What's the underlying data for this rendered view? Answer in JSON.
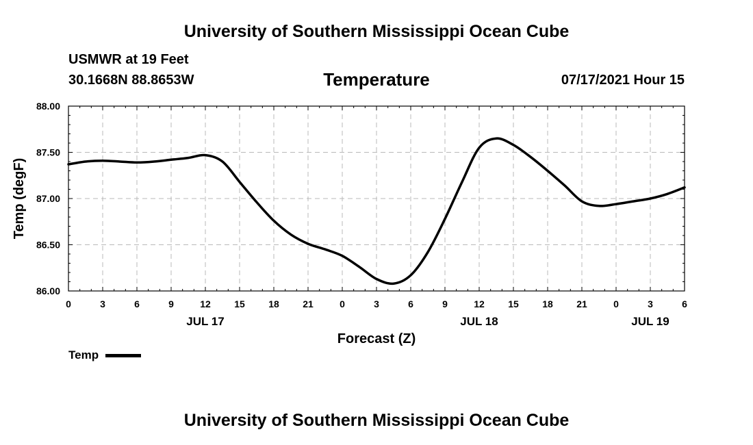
{
  "header": {
    "title": "University of Southern Mississippi Ocean Cube",
    "station": "USMWR at 19 Feet",
    "coords": "30.1668N  88.8653W",
    "chart_title": "Temperature",
    "valid_time": "07/17/2021 Hour 15"
  },
  "footer": {
    "title": "University of Southern Mississippi Ocean Cube"
  },
  "chart_data": {
    "type": "line",
    "title": "Temperature",
    "xlabel": "Forecast (Z)",
    "ylabel": "Temp (degF)",
    "ylim": [
      86.0,
      88.0
    ],
    "xlim": [
      0,
      54
    ],
    "grid": true,
    "legend_position": "bottom-left",
    "x_ticks": [
      0,
      3,
      6,
      9,
      12,
      15,
      18,
      21,
      24,
      27,
      30,
      33,
      36,
      39,
      42,
      45,
      48,
      51,
      54
    ],
    "x_tick_labels": [
      "0",
      "3",
      "6",
      "9",
      "12",
      "15",
      "18",
      "21",
      "0",
      "3",
      "6",
      "9",
      "12",
      "15",
      "18",
      "21",
      "0",
      "3",
      "6"
    ],
    "day_labels": [
      {
        "x": 12,
        "label": "JUL 17"
      },
      {
        "x": 36,
        "label": "JUL 18"
      },
      {
        "x": 51,
        "label": "JUL 19"
      }
    ],
    "y_ticks": [
      86.0,
      86.5,
      87.0,
      87.5,
      88.0
    ],
    "y_tick_labels": [
      "86.00",
      "86.50",
      "87.00",
      "87.50",
      "88.00"
    ],
    "series": [
      {
        "name": "Temp",
        "color": "#000000",
        "x": [
          0,
          1.5,
          3,
          4.5,
          6,
          7.5,
          9,
          10.5,
          12,
          13.5,
          15,
          16.5,
          18,
          19.5,
          21,
          22.5,
          24,
          25.5,
          27,
          28.5,
          30,
          31.5,
          33,
          34.5,
          36,
          37.5,
          39,
          40.5,
          42,
          43.5,
          45,
          46.5,
          48,
          49.5,
          51,
          52.5,
          54
        ],
        "values": [
          87.37,
          87.4,
          87.41,
          87.4,
          87.39,
          87.4,
          87.42,
          87.44,
          87.47,
          87.4,
          87.18,
          86.96,
          86.76,
          86.61,
          86.51,
          86.45,
          86.38,
          86.26,
          86.13,
          86.08,
          86.17,
          86.42,
          86.78,
          87.18,
          87.55,
          87.65,
          87.58,
          87.45,
          87.3,
          87.14,
          86.97,
          86.92,
          86.94,
          86.97,
          87.0,
          87.05,
          87.12
        ]
      }
    ]
  }
}
